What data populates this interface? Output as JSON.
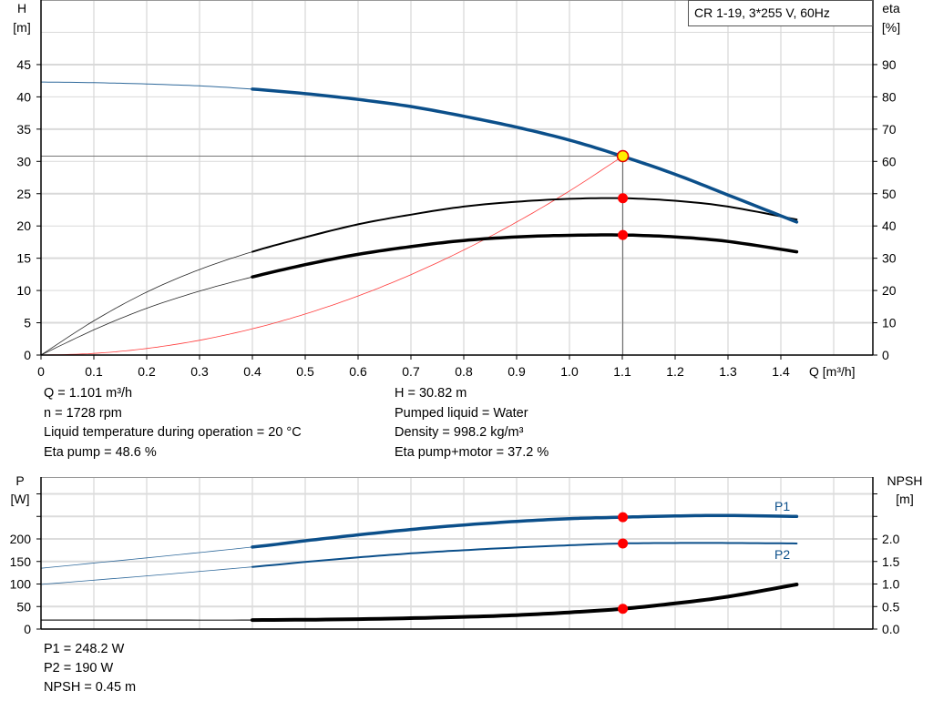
{
  "chart_data": [
    {
      "type": "line",
      "legend_box": "CR 1-19, 3*255 V, 60Hz",
      "xlabel": "Q [m³/h]",
      "ylabel_left": [
        "H",
        "[m]"
      ],
      "ylabel_right": [
        "eta",
        "[%]"
      ],
      "xlim": [
        0,
        1.5
      ],
      "ylim_left": [
        0,
        50
      ],
      "ylim_right": [
        0,
        100
      ],
      "xticks": [
        "0",
        "0.1",
        "0.2",
        "0.3",
        "0.4",
        "0.5",
        "0.6",
        "0.7",
        "0.8",
        "0.9",
        "1.0",
        "1.1",
        "1.2",
        "1.3",
        "1.4"
      ],
      "yticks_left": [
        "0",
        "5",
        "10",
        "15",
        "20",
        "25",
        "30",
        "35",
        "40",
        "45"
      ],
      "yticks_right": [
        "0",
        "10",
        "20",
        "30",
        "40",
        "50",
        "60",
        "70",
        "80",
        "90"
      ],
      "grid": true,
      "series": [
        {
          "key": "H",
          "axis": "left",
          "color": "#0b4f8a",
          "x": [
            0,
            0.1,
            0.2,
            0.3,
            0.4,
            0.5,
            0.6,
            0.7,
            0.8,
            0.9,
            1.0,
            1.1,
            1.2,
            1.3,
            1.43
          ],
          "y": [
            42.3,
            42.2,
            42.0,
            41.7,
            41.2,
            40.5,
            39.6,
            38.5,
            37.0,
            35.3,
            33.3,
            30.8,
            28.0,
            24.8,
            20.6
          ]
        },
        {
          "key": "eta_pump",
          "axis": "right",
          "color": "#000000",
          "x": [
            0,
            0.1,
            0.2,
            0.3,
            0.4,
            0.5,
            0.6,
            0.7,
            0.8,
            0.9,
            1.0,
            1.1,
            1.2,
            1.3,
            1.43
          ],
          "y": [
            0,
            10.6,
            19.5,
            26.5,
            32,
            36.5,
            40.5,
            43.5,
            46,
            47.5,
            48.4,
            48.6,
            47.8,
            46,
            42
          ]
        },
        {
          "key": "eta_pump_motor",
          "axis": "right",
          "color": "#000000",
          "x": [
            0,
            0.1,
            0.2,
            0.3,
            0.4,
            0.5,
            0.6,
            0.7,
            0.8,
            0.9,
            1.0,
            1.1,
            1.2,
            1.3,
            1.43
          ],
          "y": [
            0,
            7.8,
            14.5,
            19.8,
            24.2,
            28,
            31.2,
            33.6,
            35.5,
            36.6,
            37.1,
            37.2,
            36.6,
            35.2,
            32
          ]
        },
        {
          "key": "system",
          "axis": "left",
          "color": "#ff3b3b",
          "x": [
            0,
            0.1,
            0.2,
            0.3,
            0.4,
            0.5,
            0.6,
            0.7,
            0.8,
            0.9,
            1.0,
            1.101
          ],
          "y": [
            0,
            0.25,
            1.02,
            2.29,
            4.07,
            6.36,
            9.15,
            12.46,
            16.27,
            20.6,
            25.42,
            30.82
          ]
        }
      ],
      "operating_point": {
        "Q": 1.101,
        "H": 30.82,
        "eta_pump": 48.6,
        "eta_pump_motor": 37.2
      }
    },
    {
      "type": "line",
      "ylabel_left": [
        "P",
        "[W]"
      ],
      "ylabel_right": [
        "NPSH",
        "[m]"
      ],
      "xlim": [
        0,
        1.5
      ],
      "ylim_left": [
        0,
        350
      ],
      "ylim_right": [
        0,
        3.5
      ],
      "yticks_left": [
        "0",
        "50",
        "100",
        "150",
        "200"
      ],
      "yticks_right": [
        "0.0",
        "0.5",
        "1.0",
        "1.5",
        "2.0"
      ],
      "grid": true,
      "series": [
        {
          "key": "P1",
          "name": "P1",
          "axis": "left",
          "color": "#0b4f8a",
          "x": [
            0,
            0.2,
            0.4,
            0.5,
            0.6,
            0.7,
            0.8,
            0.9,
            1.0,
            1.1,
            1.2,
            1.3,
            1.43
          ],
          "y": [
            135,
            158,
            182,
            196,
            209,
            221,
            231,
            239,
            245,
            248.2,
            251,
            252,
            250
          ]
        },
        {
          "key": "P2",
          "name": "P2",
          "axis": "left",
          "color": "#0b4f8a",
          "x": [
            0,
            0.2,
            0.4,
            0.5,
            0.6,
            0.7,
            0.8,
            0.9,
            1.0,
            1.1,
            1.2,
            1.3,
            1.43
          ],
          "y": [
            99,
            118,
            138,
            149,
            159,
            168,
            175,
            181,
            186,
            190,
            191,
            191,
            190
          ]
        },
        {
          "key": "NPSH",
          "axis": "right",
          "color": "#000000",
          "x": [
            0,
            0.2,
            0.4,
            0.6,
            0.8,
            0.9,
            1.0,
            1.1,
            1.2,
            1.3,
            1.43
          ],
          "y": [
            0.2,
            0.2,
            0.2,
            0.22,
            0.27,
            0.31,
            0.37,
            0.45,
            0.57,
            0.72,
            0.99
          ]
        }
      ],
      "operating_point": {
        "P1": 248.2,
        "P2": 190,
        "NPSH": 0.45
      }
    }
  ],
  "info_top": {
    "left": [
      "Q = 1.101 m³/h",
      "n = 1728 rpm",
      "Liquid temperature during operation = 20 °C",
      "Eta pump = 48.6 %"
    ],
    "right": [
      "H = 30.82 m",
      "Pumped liquid = Water",
      "Density = 998.2 kg/m³",
      "Eta pump+motor = 37.2 %"
    ]
  },
  "info_bottom": [
    "P1 = 248.2 W",
    "P2 = 190 W",
    "NPSH = 0.45 m"
  ]
}
